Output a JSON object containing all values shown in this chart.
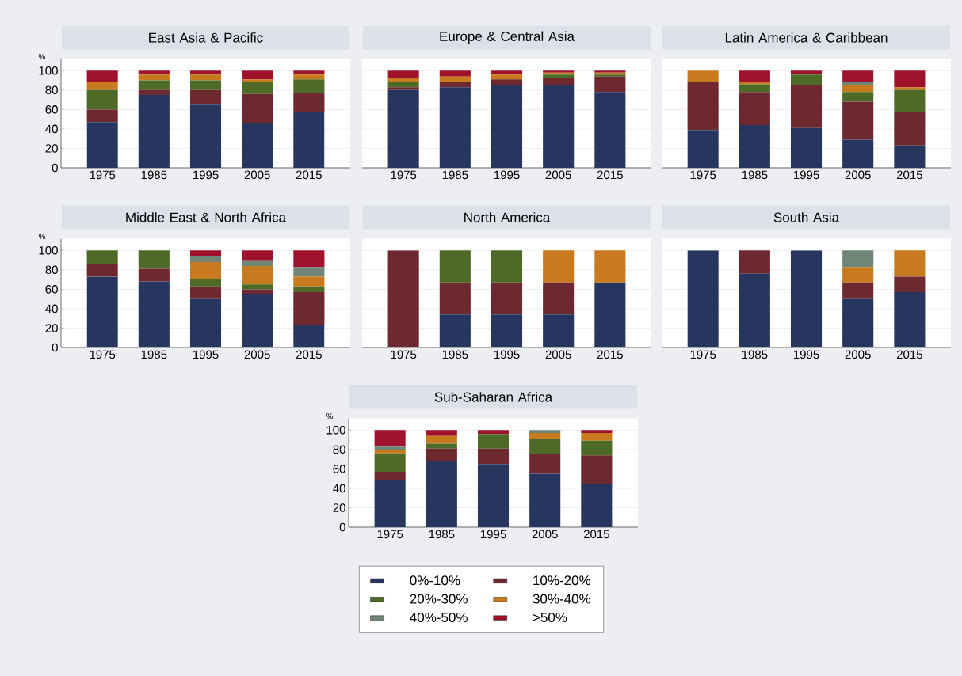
{
  "chart_data": [
    {
      "type": "bar",
      "stacked": true,
      "title": "East Asia & Pacific",
      "ylabel": "%",
      "categories": [
        "1975",
        "1985",
        "1995",
        "2005",
        "2015"
      ],
      "ylim": [
        0,
        112
      ],
      "yticks": [
        0,
        20,
        40,
        60,
        80,
        100
      ],
      "grid": "y",
      "series": [
        {
          "color": "#26365f",
          "values": [
            47,
            75,
            65,
            46,
            57
          ]
        },
        {
          "color": "#6e2830",
          "values": [
            13,
            5,
            15,
            30,
            20
          ]
        },
        {
          "color": "#4d6a27",
          "values": [
            20,
            10,
            10,
            12,
            14
          ]
        },
        {
          "color": "#c87a1e",
          "values": [
            8,
            6,
            6,
            3,
            5
          ]
        },
        {
          "color": "#6f8576",
          "values": [
            0,
            0,
            0,
            0,
            0
          ]
        },
        {
          "color": "#a0122c",
          "values": [
            12,
            4,
            4,
            9,
            4
          ]
        }
      ]
    },
    {
      "type": "bar",
      "stacked": true,
      "title": "Europe & Central Asia",
      "categories": [
        "1975",
        "1985",
        "1995",
        "2005",
        "2015"
      ],
      "ylim": [
        0,
        112
      ],
      "yticks": [
        0,
        20,
        40,
        60,
        80,
        100
      ],
      "grid": "y",
      "tick_labels": "x",
      "series": [
        {
          "color": "#26365f",
          "values": [
            80,
            83,
            85,
            85,
            78
          ]
        },
        {
          "color": "#6e2830",
          "values": [
            3,
            5,
            6,
            8,
            16
          ]
        },
        {
          "color": "#4d6a27",
          "values": [
            5,
            0,
            0,
            3,
            2
          ]
        },
        {
          "color": "#c87a1e",
          "values": [
            5,
            6,
            5,
            2,
            2
          ]
        },
        {
          "color": "#6f8576",
          "values": [
            0,
            0,
            0,
            0,
            0
          ]
        },
        {
          "color": "#a0122c",
          "values": [
            7,
            6,
            4,
            2,
            2
          ]
        }
      ]
    },
    {
      "type": "bar",
      "stacked": true,
      "title": "Latin America & Caribbean",
      "categories": [
        "1975",
        "1985",
        "1995",
        "2005",
        "2015"
      ],
      "ylim": [
        0,
        112
      ],
      "yticks": [
        0,
        20,
        40,
        60,
        80,
        100
      ],
      "grid": "y",
      "tick_labels": "x",
      "series": [
        {
          "color": "#26365f",
          "values": [
            39,
            44,
            41,
            29,
            23
          ]
        },
        {
          "color": "#6e2830",
          "values": [
            49,
            34,
            44,
            39,
            34
          ]
        },
        {
          "color": "#4d6a27",
          "values": [
            0,
            8,
            11,
            10,
            23
          ]
        },
        {
          "color": "#c87a1e",
          "values": [
            12,
            2,
            0,
            7,
            3
          ]
        },
        {
          "color": "#6f8576",
          "values": [
            0,
            0,
            0,
            3,
            0
          ]
        },
        {
          "color": "#a0122c",
          "values": [
            0,
            12,
            4,
            12,
            17
          ]
        }
      ]
    },
    {
      "type": "bar",
      "stacked": true,
      "title": "Middle East & North Africa",
      "ylabel": "%",
      "categories": [
        "1975",
        "1985",
        "1995",
        "2005",
        "2015"
      ],
      "ylim": [
        0,
        112
      ],
      "yticks": [
        0,
        20,
        40,
        60,
        80,
        100
      ],
      "grid": "y",
      "series": [
        {
          "color": "#26365f",
          "values": [
            73,
            68,
            50,
            55,
            23
          ]
        },
        {
          "color": "#6e2830",
          "values": [
            13,
            13,
            13,
            5,
            34
          ]
        },
        {
          "color": "#4d6a27",
          "values": [
            14,
            19,
            7,
            5,
            6
          ]
        },
        {
          "color": "#c87a1e",
          "values": [
            0,
            0,
            18,
            19,
            10
          ]
        },
        {
          "color": "#6f8576",
          "values": [
            0,
            0,
            6,
            5,
            10
          ]
        },
        {
          "color": "#a0122c",
          "values": [
            0,
            0,
            6,
            11,
            17
          ]
        }
      ]
    },
    {
      "type": "bar",
      "stacked": true,
      "title": "North America",
      "categories": [
        "1975",
        "1985",
        "1995",
        "2005",
        "2015"
      ],
      "ylim": [
        0,
        112
      ],
      "yticks": [
        0,
        20,
        40,
        60,
        80,
        100
      ],
      "grid": "y",
      "tick_labels": "x",
      "series": [
        {
          "color": "#26365f",
          "values": [
            0,
            34,
            34,
            34,
            67
          ]
        },
        {
          "color": "#6e2830",
          "values": [
            100,
            33,
            33,
            33,
            0
          ]
        },
        {
          "color": "#4d6a27",
          "values": [
            0,
            33,
            33,
            0,
            0
          ]
        },
        {
          "color": "#c87a1e",
          "values": [
            0,
            0,
            0,
            33,
            33
          ]
        },
        {
          "color": "#6f8576",
          "values": [
            0,
            0,
            0,
            0,
            0
          ]
        },
        {
          "color": "#a0122c",
          "values": [
            0,
            0,
            0,
            0,
            0
          ]
        }
      ]
    },
    {
      "type": "bar",
      "stacked": true,
      "title": "South Asia",
      "categories": [
        "1975",
        "1985",
        "1995",
        "2005",
        "2015"
      ],
      "ylim": [
        0,
        112
      ],
      "yticks": [
        0,
        20,
        40,
        60,
        80,
        100
      ],
      "grid": "y",
      "tick_labels": "x",
      "series": [
        {
          "color": "#26365f",
          "values": [
            100,
            76,
            100,
            50,
            57
          ]
        },
        {
          "color": "#6e2830",
          "values": [
            0,
            24,
            0,
            17,
            16
          ]
        },
        {
          "color": "#4d6a27",
          "values": [
            0,
            0,
            0,
            0,
            0
          ]
        },
        {
          "color": "#c87a1e",
          "values": [
            0,
            0,
            0,
            16,
            27
          ]
        },
        {
          "color": "#6f8576",
          "values": [
            0,
            0,
            0,
            17,
            0
          ]
        },
        {
          "color": "#a0122c",
          "values": [
            0,
            0,
            0,
            0,
            0
          ]
        }
      ]
    },
    {
      "type": "bar",
      "stacked": true,
      "title": "Sub-Saharan Africa",
      "ylabel": "%",
      "categories": [
        "1975",
        "1985",
        "1995",
        "2005",
        "2015"
      ],
      "ylim": [
        0,
        112
      ],
      "yticks": [
        0,
        20,
        40,
        60,
        80,
        100
      ],
      "grid": "y",
      "legend": "bottom",
      "series": [
        {
          "name": "0%-10%",
          "color": "#26365f",
          "values": [
            49,
            68,
            65,
            55,
            44
          ]
        },
        {
          "name": "10%-20%",
          "color": "#6e2830",
          "values": [
            8,
            13,
            16,
            20,
            30
          ]
        },
        {
          "name": "20%-30%",
          "color": "#4d6a27",
          "values": [
            19,
            5,
            15,
            16,
            15
          ]
        },
        {
          "name": "30%-40%",
          "color": "#c87a1e",
          "values": [
            3,
            8,
            0,
            6,
            8
          ]
        },
        {
          "name": "40%-50%",
          "color": "#6f8576",
          "values": [
            4,
            0,
            0,
            3,
            0
          ]
        },
        {
          "name": ">50%",
          "color": "#a0122c",
          "values": [
            17,
            6,
            4,
            0,
            3
          ]
        }
      ]
    }
  ]
}
